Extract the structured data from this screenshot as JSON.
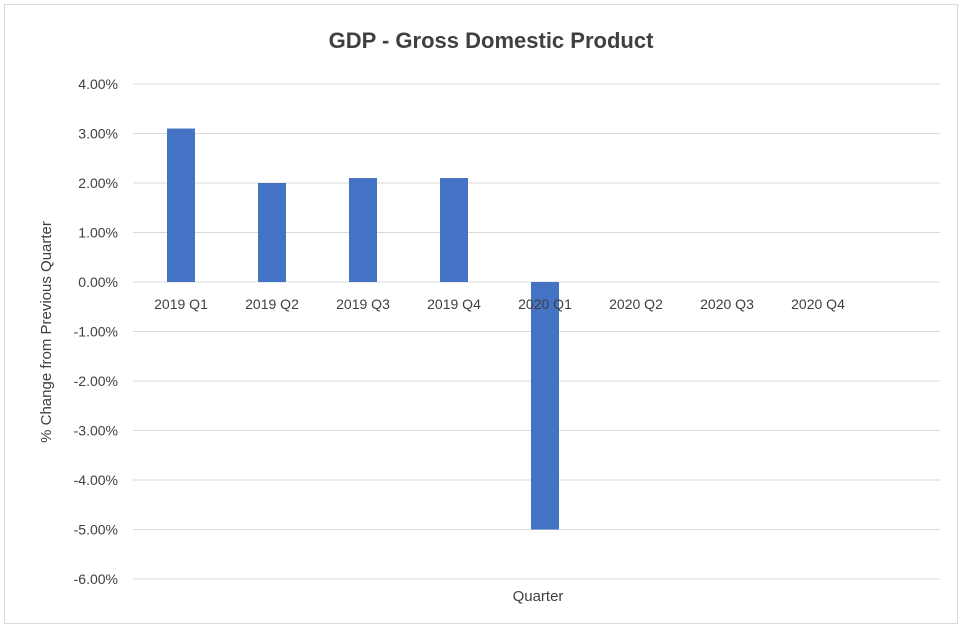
{
  "chart_data": {
    "type": "bar",
    "title": "GDP -  Gross Domestic Product",
    "xlabel": "Quarter",
    "ylabel": "% Change from Previous Quarter",
    "categories": [
      "2019 Q1",
      "2019 Q2",
      "2019 Q3",
      "2019 Q4",
      "2020 Q1",
      "2020 Q2",
      "2020 Q3",
      "2020 Q4"
    ],
    "values": [
      3.1,
      2.0,
      2.1,
      2.1,
      -5.0,
      null,
      null,
      null
    ],
    "ylim": [
      -6,
      4
    ],
    "yticks": [
      4,
      3,
      2,
      1,
      0,
      -1,
      -2,
      -3,
      -4,
      -5,
      -6
    ],
    "ytick_labels": [
      "4.00%",
      "3.00%",
      "2.00%",
      "1.00%",
      "0.00%",
      "-1.00%",
      "-2.00%",
      "-3.00%",
      "-4.00%",
      "-5.00%",
      "-6.00%"
    ],
    "grid": true,
    "legend": "none",
    "colors": {
      "bar": "#4472C4",
      "grid": "#d9d9d9",
      "text": "#404040"
    }
  }
}
